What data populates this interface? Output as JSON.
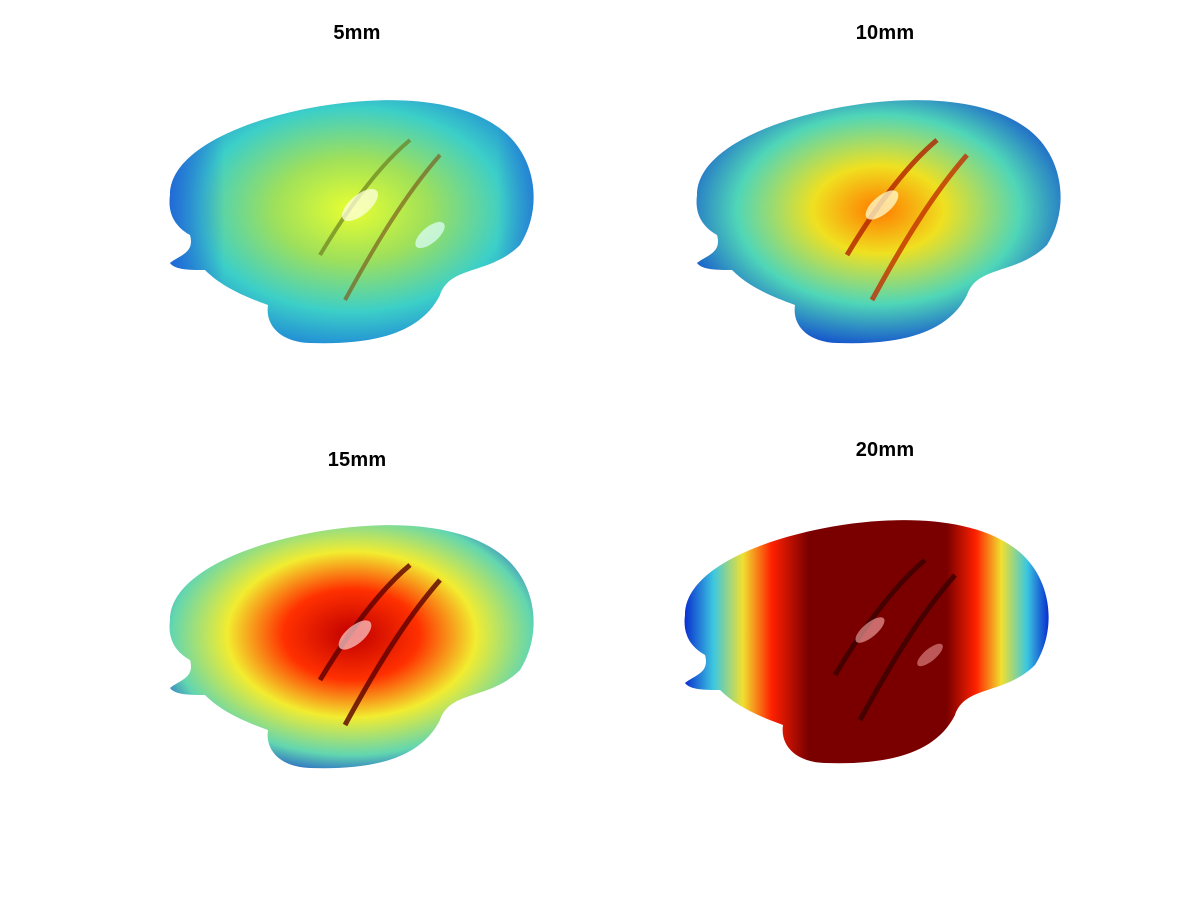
{
  "figure": {
    "panels": [
      {
        "title": "5mm",
        "palette": "low"
      },
      {
        "title": "10mm",
        "palette": "midlow"
      },
      {
        "title": "15mm",
        "palette": "midhigh"
      },
      {
        "title": "20mm",
        "palette": "high"
      }
    ],
    "colormap": [
      "#00008f",
      "#0050ff",
      "#00d4ff",
      "#7fffa0",
      "#ffff00",
      "#ff8000",
      "#ff0000",
      "#800000"
    ]
  }
}
